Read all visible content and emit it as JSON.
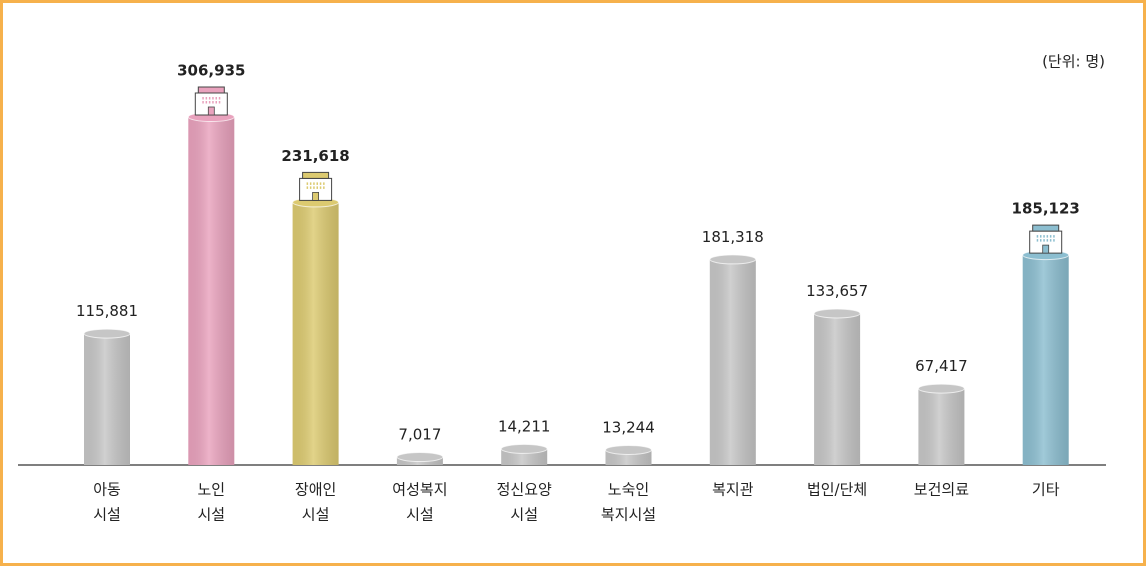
{
  "chart_data": {
    "type": "bar",
    "unit_note": "(단위: 명)",
    "categories": [
      [
        "아동",
        "시설"
      ],
      [
        "노인",
        "시설"
      ],
      [
        "장애인",
        "시설"
      ],
      [
        "여성복지",
        "시설"
      ],
      [
        "정신요양",
        "시설"
      ],
      [
        "노숙인",
        "복지시설"
      ],
      [
        "복지관"
      ],
      [
        "법인/단체"
      ],
      [
        "보건의료"
      ],
      [
        "기타"
      ]
    ],
    "values": [
      115881,
      306935,
      231618,
      7017,
      14211,
      13244,
      181318,
      133657,
      67417,
      185123
    ],
    "value_labels": [
      "115,881",
      "306,935",
      "231,618",
      "7,017",
      "14,211",
      "13,244",
      "181,318",
      "133,657",
      "67,417",
      "185,123"
    ],
    "colors": [
      "#c6c6c6",
      "#e9a2bd",
      "#dcca70",
      "#c6c6c6",
      "#c6c6c6",
      "#c6c6c6",
      "#c6c6c6",
      "#c6c6c6",
      "#c6c6c6",
      "#8cbed0"
    ],
    "highlight": [
      false,
      true,
      true,
      false,
      false,
      false,
      false,
      false,
      false,
      true
    ]
  }
}
